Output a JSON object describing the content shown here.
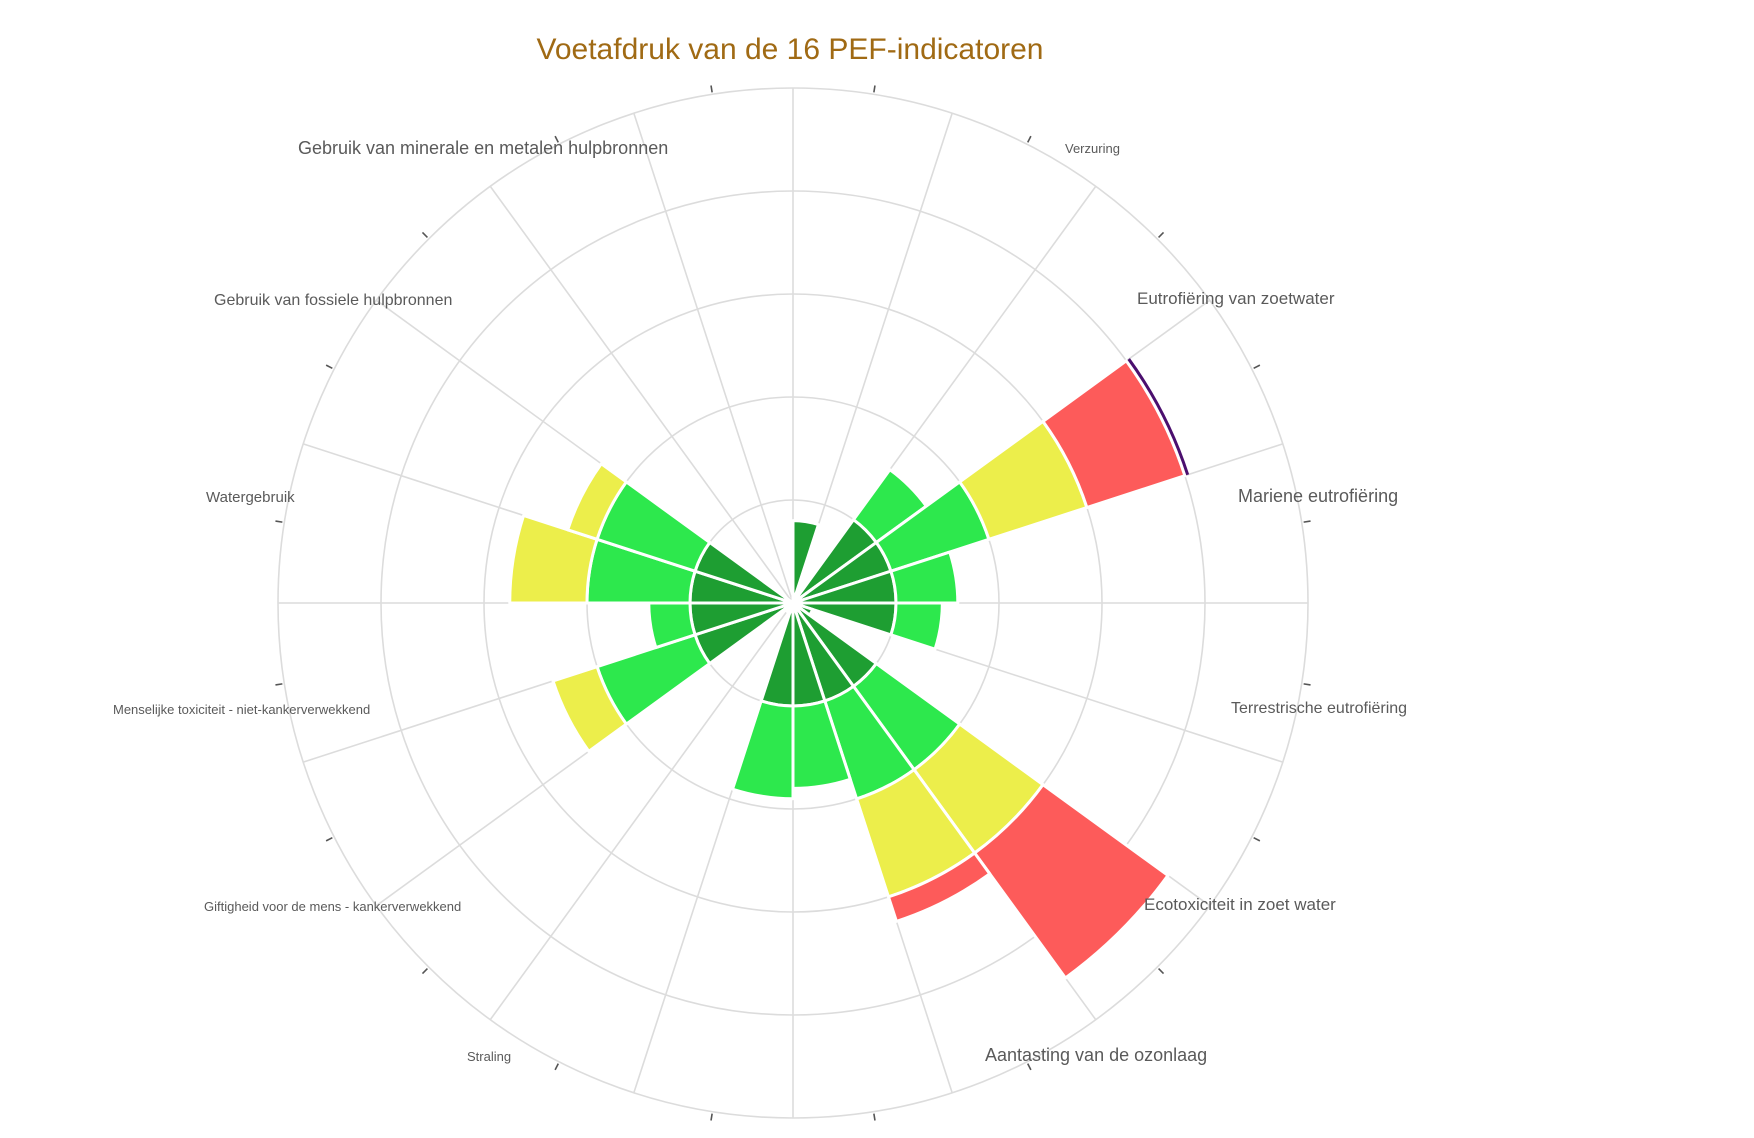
{
  "chart_data": {
    "type": "polar-area",
    "title": "Voetafdruk van de 16 PEF-indicatoren",
    "rlim": [
      0,
      5
    ],
    "grid": true,
    "legend": "none",
    "colors": {
      "dark_green": "#1e9e32",
      "green": "#2de84d",
      "yellow": "#ecee4b",
      "red": "#fd5b5a",
      "outline": "#4b0f6e"
    },
    "band_order": [
      "dark_green",
      "green",
      "yellow",
      "red"
    ],
    "categories": [
      {
        "label": "",
        "value": 0.8,
        "bands": [
          0.8
        ]
      },
      {
        "label": "Verzuring",
        "value": 0.1,
        "bands": [
          0.1
        ]
      },
      {
        "label": "",
        "value": 1.6,
        "bands": [
          1.0,
          0.6
        ]
      },
      {
        "label": "Eutrofiëring van zoetwater",
        "value": 4.0,
        "bands": [
          1.0,
          1.0,
          1.0,
          1.0
        ],
        "outline": true
      },
      {
        "label": "Mariene eutrofiëring",
        "value": 1.6,
        "bands": [
          1.0,
          0.6
        ]
      },
      {
        "label": "Terrestrische eutrofiëring",
        "value": 1.45,
        "bands": [
          1.0,
          0.45
        ]
      },
      {
        "label": "",
        "value": 0.2,
        "bands": [
          0.2
        ]
      },
      {
        "label": "Ecotoxiciteit in zoet water",
        "value": 4.5,
        "bands": [
          1.0,
          1.0,
          1.0,
          1.5
        ]
      },
      {
        "label": "Aantasting van de ozonlaag",
        "value": 3.25,
        "bands": [
          1.0,
          1.0,
          1.0,
          0.25
        ]
      },
      {
        "label": "",
        "value": 1.8,
        "bands": [
          1.0,
          0.8
        ]
      },
      {
        "label": "Straling",
        "value": 1.9,
        "bands": [
          1.0,
          0.9
        ]
      },
      {
        "label": "",
        "value": 0.1,
        "bands": [
          0.1
        ]
      },
      {
        "label": "Giftigheid voor de mens - kankerverwekkend",
        "value": 0,
        "bands": []
      },
      {
        "label": "Menselijke toxiciteit - niet-kankerverwekkend",
        "value": 2.45,
        "bands": [
          1.0,
          1.0,
          0.45
        ]
      },
      {
        "label": "",
        "value": 1.4,
        "bands": [
          1.0,
          0.4
        ]
      },
      {
        "label": "Watergebruik",
        "value": 2.75,
        "bands": [
          1.0,
          1.0,
          0.75
        ]
      },
      {
        "label": "",
        "value": 2.3,
        "bands": [
          1.0,
          1.0,
          0.3
        ]
      },
      {
        "label": "Gebruik van fossiele hulpbronnen",
        "value": 0,
        "bands": []
      },
      {
        "label": "Gebruik van minerale en metalen hulpbronnen",
        "value": 0,
        "bands": []
      },
      {
        "label": "",
        "value": 0,
        "bands": []
      }
    ]
  }
}
